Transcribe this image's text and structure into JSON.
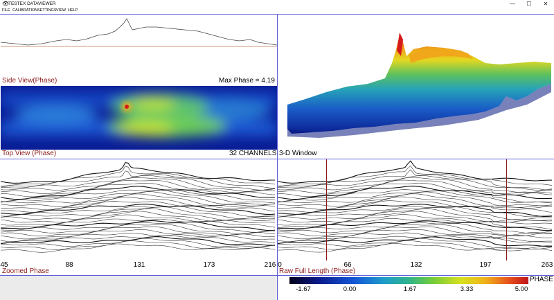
{
  "window": {
    "title": "TESTEX DATAVIEWER",
    "app_icon": "eye-icon",
    "minimize": "—",
    "maximize": "☐",
    "close": "✕"
  },
  "menu": [
    "FILE",
    "CALIBRATION",
    "SETTINGS",
    "VIEW",
    "HELP"
  ],
  "side_view": {
    "label": "Side View(Phase)",
    "max_phase_text": "Max Phase = 4.19"
  },
  "top_view": {
    "label": "Top View (Phase)",
    "channels_text": "32 CHANNELS"
  },
  "three_d": {
    "label": "3-D Window"
  },
  "zoomed": {
    "label": "Zoomed Phase",
    "ticks": [
      "45",
      "88",
      "131",
      "173",
      "216"
    ]
  },
  "raw": {
    "label": "Raw Full Length (Phase)",
    "ticks": [
      "0",
      "66",
      "132",
      "197",
      "263"
    ]
  },
  "colorbar": {
    "label": "PHASE",
    "ticks": [
      "-1.67",
      "0.00",
      "1.67",
      "3.33",
      "5.00"
    ]
  },
  "colors": {
    "divider": "#5b5bd6",
    "label_red": "#8b1a1a",
    "cursor": "#8b1a1a"
  }
}
